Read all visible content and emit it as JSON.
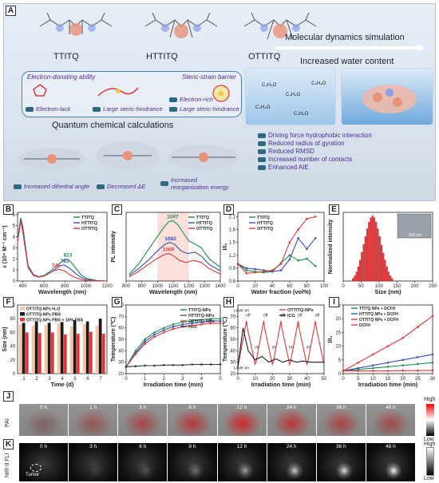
{
  "panel_labels": {
    "A": "A",
    "B": "B",
    "C": "C",
    "D": "D",
    "E": "E",
    "F": "F",
    "G": "G",
    "H": "H",
    "I": "I",
    "J": "J",
    "K": "K"
  },
  "panelA": {
    "molecules": [
      "TTITQ",
      "HTTITQ",
      "OTTITQ"
    ],
    "md_title": "Molecular dynamics simulation",
    "water_title": "Increased water content",
    "qc_title": "Quantum chemical calculations",
    "electron_donating": "Electron-donating ability",
    "steric_barrier": "Steric-strain barrier",
    "tags_top": [
      "Electron-lack",
      "Large steric-hindrance",
      "Electron-rich",
      "Large steric-hindrance"
    ],
    "tags_bottom": [
      "Increased dihedral angle",
      "Decreased ΔE",
      "Increased reorganization energy"
    ],
    "md_results": [
      "Driving force hydrophobic interaction",
      "Reduced radius of gyration",
      "Reduced RMSD",
      "Increased number of contacts",
      "Enhanced AIE"
    ],
    "molecule_labels": [
      "C₄H₄O",
      "C₄H₄O",
      "C₄H₄O",
      "C₄H₄O",
      "C₄H₄O"
    ]
  },
  "colors": {
    "TTITQ": "#1f8f52",
    "HTTITQ": "#3a4fb0",
    "OTTITQ": "#e0383b",
    "DCFH": "#e0383b",
    "H2O": "#333333"
  },
  "chart_data": [
    {
      "panel": "B",
      "type": "line",
      "xlabel": "Wavelength (nm)",
      "ylabel": "ε (10⁴ M⁻¹ cm⁻¹)",
      "xlim": [
        350,
        1200
      ],
      "ylim": [
        0,
        6.2
      ],
      "xticks": [
        400,
        600,
        800,
        1000,
        1200
      ],
      "yticks": [
        0,
        1,
        2,
        3,
        4,
        5,
        6
      ],
      "series": [
        {
          "name": "TTITQ",
          "x": [
            350,
            380,
            400,
            450,
            500,
            550,
            600,
            650,
            700,
            750,
            800,
            813,
            850,
            900,
            950,
            1000,
            1100,
            1200
          ],
          "y": [
            3.8,
            5.7,
            4.9,
            1.4,
            0.6,
            0.4,
            0.5,
            0.8,
            1.2,
            1.6,
            1.95,
            2.0,
            1.8,
            1.2,
            0.6,
            0.25,
            0.05,
            0.0
          ]
        },
        {
          "name": "HTTITQ",
          "x": [
            350,
            380,
            400,
            450,
            500,
            550,
            600,
            650,
            700,
            750,
            783,
            800,
            850,
            900,
            950,
            1000,
            1100,
            1200
          ],
          "y": [
            3.6,
            5.6,
            4.7,
            1.3,
            0.55,
            0.35,
            0.45,
            0.7,
            1.0,
            1.35,
            1.45,
            1.42,
            1.1,
            0.7,
            0.35,
            0.15,
            0.03,
            0.0
          ]
        },
        {
          "name": "OTTITQ",
          "x": [
            350,
            380,
            400,
            450,
            500,
            550,
            600,
            650,
            700,
            746,
            800,
            850,
            900,
            950,
            1000,
            1100,
            1200
          ],
          "y": [
            3.5,
            5.4,
            4.4,
            1.2,
            0.5,
            0.35,
            0.45,
            0.7,
            0.95,
            1.05,
            0.9,
            0.55,
            0.3,
            0.15,
            0.06,
            0.01,
            0.0
          ]
        }
      ],
      "annotations": [
        "813",
        "783",
        "746"
      ]
    },
    {
      "panel": "C",
      "type": "line",
      "xlabel": "Wavelength (nm)",
      "ylabel": "PL intensity",
      "xlim": [
        800,
        1400
      ],
      "ylim": [
        0,
        1.0
      ],
      "xticks": [
        800,
        900,
        1000,
        1100,
        1200,
        1300,
        1400
      ],
      "series": [
        {
          "name": "TTITQ",
          "x": [
            820,
            880,
            940,
            1000,
            1040,
            1070,
            1097,
            1130,
            1170,
            1200,
            1240,
            1280,
            1330,
            1400
          ],
          "y": [
            0.1,
            0.25,
            0.45,
            0.65,
            0.78,
            0.86,
            0.88,
            0.82,
            0.68,
            0.58,
            0.54,
            0.48,
            0.32,
            0.2
          ]
        },
        {
          "name": "HTTITQ",
          "x": [
            820,
            880,
            940,
            1000,
            1040,
            1060,
            1082,
            1110,
            1150,
            1190,
            1240,
            1280,
            1330,
            1400
          ],
          "y": [
            0.08,
            0.18,
            0.3,
            0.44,
            0.52,
            0.55,
            0.56,
            0.53,
            0.44,
            0.4,
            0.42,
            0.36,
            0.24,
            0.15
          ]
        },
        {
          "name": "OTTITQ",
          "x": [
            820,
            880,
            940,
            1000,
            1030,
            1050,
            1069,
            1100,
            1140,
            1180,
            1230,
            1280,
            1330,
            1400
          ],
          "y": [
            0.06,
            0.14,
            0.24,
            0.33,
            0.37,
            0.39,
            0.4,
            0.37,
            0.3,
            0.27,
            0.3,
            0.27,
            0.18,
            0.1
          ]
        }
      ],
      "annotations": [
        "1097",
        "1082",
        "1069"
      ]
    },
    {
      "panel": "D",
      "type": "line",
      "xlabel": "Water fraction (vol%)",
      "ylabel": "I/I₀",
      "xlim": [
        0,
        100
      ],
      "ylim": [
        0.6,
        2.2
      ],
      "xticks": [
        0,
        20,
        40,
        60,
        80,
        100
      ],
      "yticks": [
        0.6,
        0.9,
        1.2,
        1.5,
        1.8,
        2.1
      ],
      "series": [
        {
          "name": "TTITQ",
          "x": [
            0,
            10,
            20,
            30,
            40,
            50,
            60,
            70,
            80,
            90
          ],
          "y": [
            1.0,
            0.85,
            0.82,
            0.8,
            0.82,
            1.02,
            1.2,
            1.08,
            1.12,
            0.95
          ]
        },
        {
          "name": "HTTITQ",
          "x": [
            0,
            10,
            20,
            30,
            40,
            50,
            60,
            70,
            80,
            90
          ],
          "y": [
            1.0,
            0.9,
            0.88,
            0.85,
            0.82,
            0.85,
            1.1,
            1.6,
            1.35,
            1.6
          ]
        },
        {
          "name": "OTTITQ",
          "x": [
            0,
            10,
            20,
            30,
            40,
            50,
            60,
            70,
            80,
            90
          ],
          "y": [
            1.0,
            0.78,
            0.8,
            0.82,
            0.85,
            1.0,
            1.5,
            1.8,
            2.05,
            2.1
          ]
        }
      ]
    },
    {
      "panel": "E",
      "type": "bar",
      "xlabel": "Size (nm)",
      "ylabel": "Normalized intensity",
      "xlim": [
        0,
        250
      ],
      "ylim": [
        0,
        1.05
      ],
      "xticks": [
        0,
        50,
        100,
        150,
        200,
        250
      ],
      "bin_width": 5,
      "bins_start": 25,
      "values": [
        0.04,
        0.08,
        0.14,
        0.22,
        0.32,
        0.44,
        0.56,
        0.68,
        0.8,
        0.9,
        0.97,
        1.0,
        0.97,
        0.9,
        0.8,
        0.68,
        0.55,
        0.43,
        0.32,
        0.22,
        0.14,
        0.08,
        0.04
      ],
      "inset_scale": "200 nm"
    },
    {
      "panel": "F",
      "type": "bar",
      "xlabel": "Time (d)",
      "ylabel": "Size (nm)",
      "ylim": [
        0,
        100
      ],
      "yticks": [
        0,
        20,
        40,
        60,
        80,
        100
      ],
      "categories": [
        "1",
        "2",
        "3",
        "4",
        "5",
        "6",
        "7"
      ],
      "series": [
        {
          "name": "OTTITQ-NPs H₂O",
          "color": "#f2c8a8",
          "values": [
            72,
            70,
            71,
            73,
            69,
            72,
            70
          ]
        },
        {
          "name": "OTTITQ-NPs PBS",
          "color": "#1a1a1a",
          "values": [
            74,
            76,
            74,
            75,
            78,
            76,
            80
          ]
        },
        {
          "name": "OTTITQ-NPs PBS + 10% FBS",
          "color": "#e0383b",
          "values": [
            60,
            59,
            60,
            57,
            58,
            61,
            58
          ]
        }
      ]
    },
    {
      "panel": "G",
      "type": "line",
      "xlabel": "Irradiation time (min)",
      "ylabel": "Temperature (℃)",
      "xlim": [
        0,
        5
      ],
      "ylim": [
        20,
        80
      ],
      "xticks": [
        0,
        1,
        2,
        3,
        4,
        5
      ],
      "yticks": [
        20,
        30,
        40,
        50,
        60,
        70,
        80
      ],
      "series": [
        {
          "name": "TTITQ-NPs",
          "x": [
            0,
            0.5,
            1,
            1.5,
            2,
            2.5,
            3,
            3.5,
            4,
            4.5,
            5
          ],
          "y": [
            26,
            40,
            50,
            56,
            60,
            63,
            65,
            66,
            67,
            68,
            68
          ]
        },
        {
          "name": "HTTITQ-NPs",
          "x": [
            0,
            0.5,
            1,
            1.5,
            2,
            2.5,
            3,
            3.5,
            4,
            4.5,
            5
          ],
          "y": [
            26,
            38,
            48,
            54,
            58,
            61,
            63,
            64,
            65,
            66,
            66
          ]
        },
        {
          "name": "OTTITQ-NPs",
          "x": [
            0,
            0.5,
            1,
            1.5,
            2,
            2.5,
            3,
            3.5,
            4,
            4.5,
            5
          ],
          "y": [
            26,
            37,
            46,
            52,
            56,
            59,
            61,
            62,
            63,
            64,
            64
          ]
        },
        {
          "name": "H₂O",
          "x": [
            0,
            0.5,
            1,
            1.5,
            2,
            2.5,
            3,
            3.5,
            4,
            4.5,
            5
          ],
          "y": [
            26,
            26.5,
            27,
            27,
            27.5,
            27.5,
            27.5,
            28,
            28,
            28,
            28
          ]
        }
      ]
    },
    {
      "panel": "H",
      "type": "line",
      "xlabel": "Irradiation time (min)",
      "ylabel": "Temperature (℃)",
      "xlim": [
        0,
        50
      ],
      "ylim": [
        20,
        80
      ],
      "xticks": [
        0,
        10,
        20,
        30,
        40,
        50
      ],
      "yticks": [
        20,
        30,
        40,
        50,
        60,
        70
      ],
      "series": [
        {
          "name": "OTTITQ-NPs",
          "x": [
            0,
            5,
            5.5,
            10,
            10.5,
            15,
            15.5,
            20,
            20.5,
            25,
            25.5,
            30,
            30.5,
            35,
            35.5,
            40,
            40.5,
            45,
            45.5,
            50
          ],
          "y": [
            26,
            66,
            60,
            28,
            30,
            66,
            60,
            28,
            30,
            66,
            60,
            28,
            30,
            66,
            60,
            28,
            30,
            66,
            60,
            28
          ]
        },
        {
          "name": "ICG",
          "x": [
            0,
            3,
            6,
            10,
            14,
            18,
            22,
            26,
            30,
            34,
            38,
            42,
            46,
            50
          ],
          "y": [
            26,
            60,
            40,
            32,
            35,
            30,
            33,
            30,
            32,
            30,
            31,
            30,
            30,
            30
          ]
        }
      ],
      "annotations": [
        "Laser on",
        "off",
        "on",
        "off",
        "on",
        "off",
        "on",
        "off",
        "on",
        "off",
        "Laser on"
      ]
    },
    {
      "panel": "I",
      "type": "line",
      "xlabel": "Irradiation time (min)",
      "ylabel": "I/I₀",
      "xlim": [
        0,
        30
      ],
      "ylim": [
        0,
        25
      ],
      "xticks": [
        0,
        5,
        10,
        15,
        20,
        25,
        30
      ],
      "yticks": [
        0,
        5,
        10,
        15,
        20,
        25
      ],
      "series": [
        {
          "name": "TTITQ NPs + DCFH",
          "x": [
            0,
            5,
            10,
            15,
            20,
            25,
            30
          ],
          "y": [
            1,
            1.5,
            2,
            2.5,
            3,
            3.5,
            4
          ]
        },
        {
          "name": "HTTITQ NPs + DCFH",
          "x": [
            0,
            5,
            10,
            15,
            20,
            25,
            30
          ],
          "y": [
            1,
            2,
            3,
            4,
            5,
            6,
            7
          ]
        },
        {
          "name": "OTTITQ NPs + DCFH",
          "x": [
            0,
            5,
            10,
            15,
            20,
            25,
            30
          ],
          "y": [
            1,
            4,
            7,
            10,
            13,
            17,
            21
          ]
        },
        {
          "name": "DCFH",
          "x": [
            0,
            5,
            10,
            15,
            20,
            25,
            30
          ],
          "y": [
            1,
            1,
            1,
            1,
            1.1,
            1.1,
            1.2
          ]
        }
      ]
    }
  ],
  "panelJ": {
    "label": "PAI",
    "times": [
      "0 h",
      "1 h",
      "3 h",
      "6 h",
      "12 h",
      "24 h",
      "36 h",
      "48 h"
    ],
    "high": "High",
    "low": "Low"
  },
  "panelK": {
    "label": "NIR-II FLI",
    "times": [
      "0 h",
      "3 h",
      "6 h",
      "9 h",
      "12 h",
      "24 h",
      "36 h",
      "48 h"
    ],
    "high": "High",
    "low": "Low",
    "tumor": "Tumor"
  }
}
